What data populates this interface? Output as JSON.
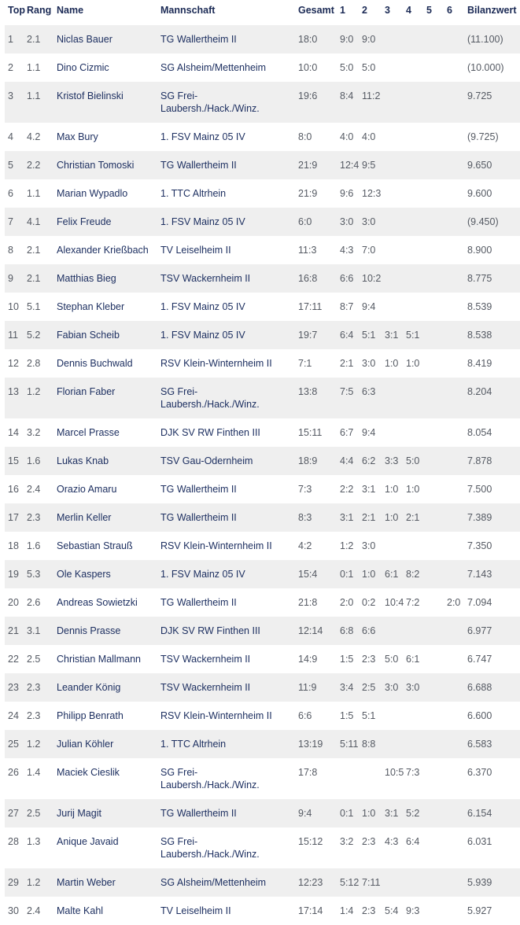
{
  "table": {
    "headers": [
      "Top",
      "Rang",
      "Name",
      "Mannschaft",
      "Gesamt",
      "1",
      "2",
      "3",
      "4",
      "5",
      "6",
      "Bilanzwert"
    ],
    "row_colors": {
      "odd": "#efefef",
      "even": "#ffffff"
    },
    "rows": [
      [
        "1",
        "2.1",
        "Niclas Bauer",
        "TG Wallertheim II",
        "18:0",
        "9:0",
        "9:0",
        "",
        "",
        "",
        "",
        "(11.100)"
      ],
      [
        "2",
        "1.1",
        "Dino Cizmic",
        "SG Alsheim/Mettenheim",
        "10:0",
        "5:0",
        "5:0",
        "",
        "",
        "",
        "",
        "(10.000)"
      ],
      [
        "3",
        "1.1",
        "Kristof Bielinski",
        "SG Frei-Laubersh./Hack./Winz.",
        "19:6",
        "8:4",
        "11:2",
        "",
        "",
        "",
        "",
        "9.725"
      ],
      [
        "4",
        "4.2",
        "Max Bury",
        "1. FSV Mainz 05 IV",
        "8:0",
        "4:0",
        "4:0",
        "",
        "",
        "",
        "",
        "(9.725)"
      ],
      [
        "5",
        "2.2",
        "Christian Tomoski",
        "TG Wallertheim II",
        "21:9",
        "12:4",
        "9:5",
        "",
        "",
        "",
        "",
        "9.650"
      ],
      [
        "6",
        "1.1",
        "Marian Wypadlo",
        "1. TTC Altrhein",
        "21:9",
        "9:6",
        "12:3",
        "",
        "",
        "",
        "",
        "9.600"
      ],
      [
        "7",
        "4.1",
        "Felix Freude",
        "1. FSV Mainz 05 IV",
        "6:0",
        "3:0",
        "3:0",
        "",
        "",
        "",
        "",
        "(9.450)"
      ],
      [
        "8",
        "2.1",
        "Alexander Krießbach",
        "TV Leiselheim II",
        "11:3",
        "4:3",
        "7:0",
        "",
        "",
        "",
        "",
        "8.900"
      ],
      [
        "9",
        "2.1",
        "Matthias Bieg",
        "TSV Wackernheim II",
        "16:8",
        "6:6",
        "10:2",
        "",
        "",
        "",
        "",
        "8.775"
      ],
      [
        "10",
        "5.1",
        "Stephan Kleber",
        "1. FSV Mainz 05 IV",
        "17:11",
        "8:7",
        "9:4",
        "",
        "",
        "",
        "",
        "8.539"
      ],
      [
        "11",
        "5.2",
        "Fabian Scheib",
        "1. FSV Mainz 05 IV",
        "19:7",
        "6:4",
        "5:1",
        "3:1",
        "5:1",
        "",
        "",
        "8.538"
      ],
      [
        "12",
        "2.8",
        "Dennis Buchwald",
        "RSV Klein-Winternheim II",
        "7:1",
        "2:1",
        "3:0",
        "1:0",
        "1:0",
        "",
        "",
        "8.419"
      ],
      [
        "13",
        "1.2",
        "Florian Faber",
        "SG Frei-Laubersh./Hack./Winz.",
        "13:8",
        "7:5",
        "6:3",
        "",
        "",
        "",
        "",
        "8.204"
      ],
      [
        "14",
        "3.2",
        "Marcel Prasse",
        "DJK SV RW Finthen III",
        "15:11",
        "6:7",
        "9:4",
        "",
        "",
        "",
        "",
        "8.054"
      ],
      [
        "15",
        "1.6",
        "Lukas Knab",
        "TSV Gau-Odernheim",
        "18:9",
        "4:4",
        "6:2",
        "3:3",
        "5:0",
        "",
        "",
        "7.878"
      ],
      [
        "16",
        "2.4",
        "Orazio Amaru",
        "TG Wallertheim II",
        "7:3",
        "2:2",
        "3:1",
        "1:0",
        "1:0",
        "",
        "",
        "7.500"
      ],
      [
        "17",
        "2.3",
        "Merlin Keller",
        "TG Wallertheim II",
        "8:3",
        "3:1",
        "2:1",
        "1:0",
        "2:1",
        "",
        "",
        "7.389"
      ],
      [
        "18",
        "1.6",
        "Sebastian Strauß",
        "RSV Klein-Winternheim II",
        "4:2",
        "1:2",
        "3:0",
        "",
        "",
        "",
        "",
        "7.350"
      ],
      [
        "19",
        "5.3",
        "Ole Kaspers",
        "1. FSV Mainz 05 IV",
        "15:4",
        "0:1",
        "1:0",
        "6:1",
        "8:2",
        "",
        "",
        "7.143"
      ],
      [
        "20",
        "2.6",
        "Andreas Sowietzki",
        "TG Wallertheim II",
        "21:8",
        "2:0",
        "0:2",
        "10:4",
        "7:2",
        "",
        "2:0",
        "7.094"
      ],
      [
        "21",
        "3.1",
        "Dennis Prasse",
        "DJK SV RW Finthen III",
        "12:14",
        "6:8",
        "6:6",
        "",
        "",
        "",
        "",
        "6.977"
      ],
      [
        "22",
        "2.5",
        "Christian Mallmann",
        "TSV Wackernheim II",
        "14:9",
        "1:5",
        "2:3",
        "5:0",
        "6:1",
        "",
        "",
        "6.747"
      ],
      [
        "23",
        "2.3",
        "Leander König",
        "TSV Wackernheim II",
        "11:9",
        "3:4",
        "2:5",
        "3:0",
        "3:0",
        "",
        "",
        "6.688"
      ],
      [
        "24",
        "2.3",
        "Philipp Benrath",
        "RSV Klein-Winternheim II",
        "6:6",
        "1:5",
        "5:1",
        "",
        "",
        "",
        "",
        "6.600"
      ],
      [
        "25",
        "1.2",
        "Julian Köhler",
        "1. TTC Altrhein",
        "13:19",
        "5:11",
        "8:8",
        "",
        "",
        "",
        "",
        "6.583"
      ],
      [
        "26",
        "1.4",
        "Maciek Cieslik",
        "SG Frei-Laubersh./Hack./Winz.",
        "17:8",
        "",
        "",
        "10:5",
        "7:3",
        "",
        "",
        "6.370"
      ],
      [
        "27",
        "2.5",
        "Jurij Magit",
        "TG Wallertheim II",
        "9:4",
        "0:1",
        "1:0",
        "3:1",
        "5:2",
        "",
        "",
        "6.154"
      ],
      [
        "28",
        "1.3",
        "Anique Javaid",
        "SG Frei-Laubersh./Hack./Winz.",
        "15:12",
        "3:2",
        "2:3",
        "4:3",
        "6:4",
        "",
        "",
        "6.031"
      ],
      [
        "29",
        "1.2",
        "Martin Weber",
        "SG Alsheim/Mettenheim",
        "12:23",
        "5:12",
        "7:11",
        "",
        "",
        "",
        "",
        "5.939"
      ],
      [
        "30",
        "2.4",
        "Malte Kahl",
        "TV Leiselheim II",
        "17:14",
        "1:4",
        "2:3",
        "5:4",
        "9:3",
        "",
        "",
        "5.927"
      ]
    ]
  }
}
